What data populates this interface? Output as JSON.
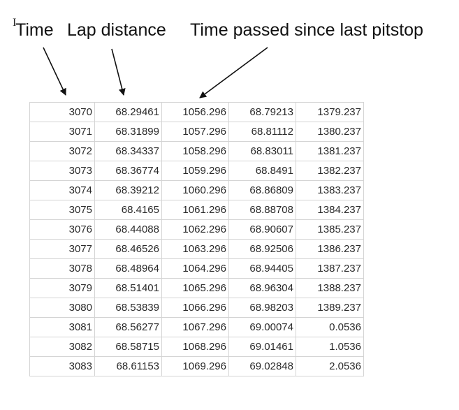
{
  "annotations": {
    "time_label": "Time",
    "lap_distance_label": "Lap distance",
    "pitstop_label": "Time passed since last pitstop"
  },
  "sheet": {
    "rows": [
      [
        "3070",
        "68.29461",
        "1056.296",
        "68.79213",
        "1379.237"
      ],
      [
        "3071",
        "68.31899",
        "1057.296",
        "68.81112",
        "1380.237"
      ],
      [
        "3072",
        "68.34337",
        "1058.296",
        "68.83011",
        "1381.237"
      ],
      [
        "3073",
        "68.36774",
        "1059.296",
        "68.8491",
        "1382.237"
      ],
      [
        "3074",
        "68.39212",
        "1060.296",
        "68.86809",
        "1383.237"
      ],
      [
        "3075",
        "68.4165",
        "1061.296",
        "68.88708",
        "1384.237"
      ],
      [
        "3076",
        "68.44088",
        "1062.296",
        "68.90607",
        "1385.237"
      ],
      [
        "3077",
        "68.46526",
        "1063.296",
        "68.92506",
        "1386.237"
      ],
      [
        "3078",
        "68.48964",
        "1064.296",
        "68.94405",
        "1387.237"
      ],
      [
        "3079",
        "68.51401",
        "1065.296",
        "68.96304",
        "1388.237"
      ],
      [
        "3080",
        "68.53839",
        "1066.296",
        "68.98203",
        "1389.237"
      ],
      [
        "3081",
        "68.56277",
        "1067.296",
        "69.00074",
        "0.0536"
      ],
      [
        "3082",
        "68.58715",
        "1068.296",
        "69.01461",
        "1.0536"
      ],
      [
        "3083",
        "68.61153",
        "1069.296",
        "69.02848",
        "2.0536"
      ]
    ]
  }
}
